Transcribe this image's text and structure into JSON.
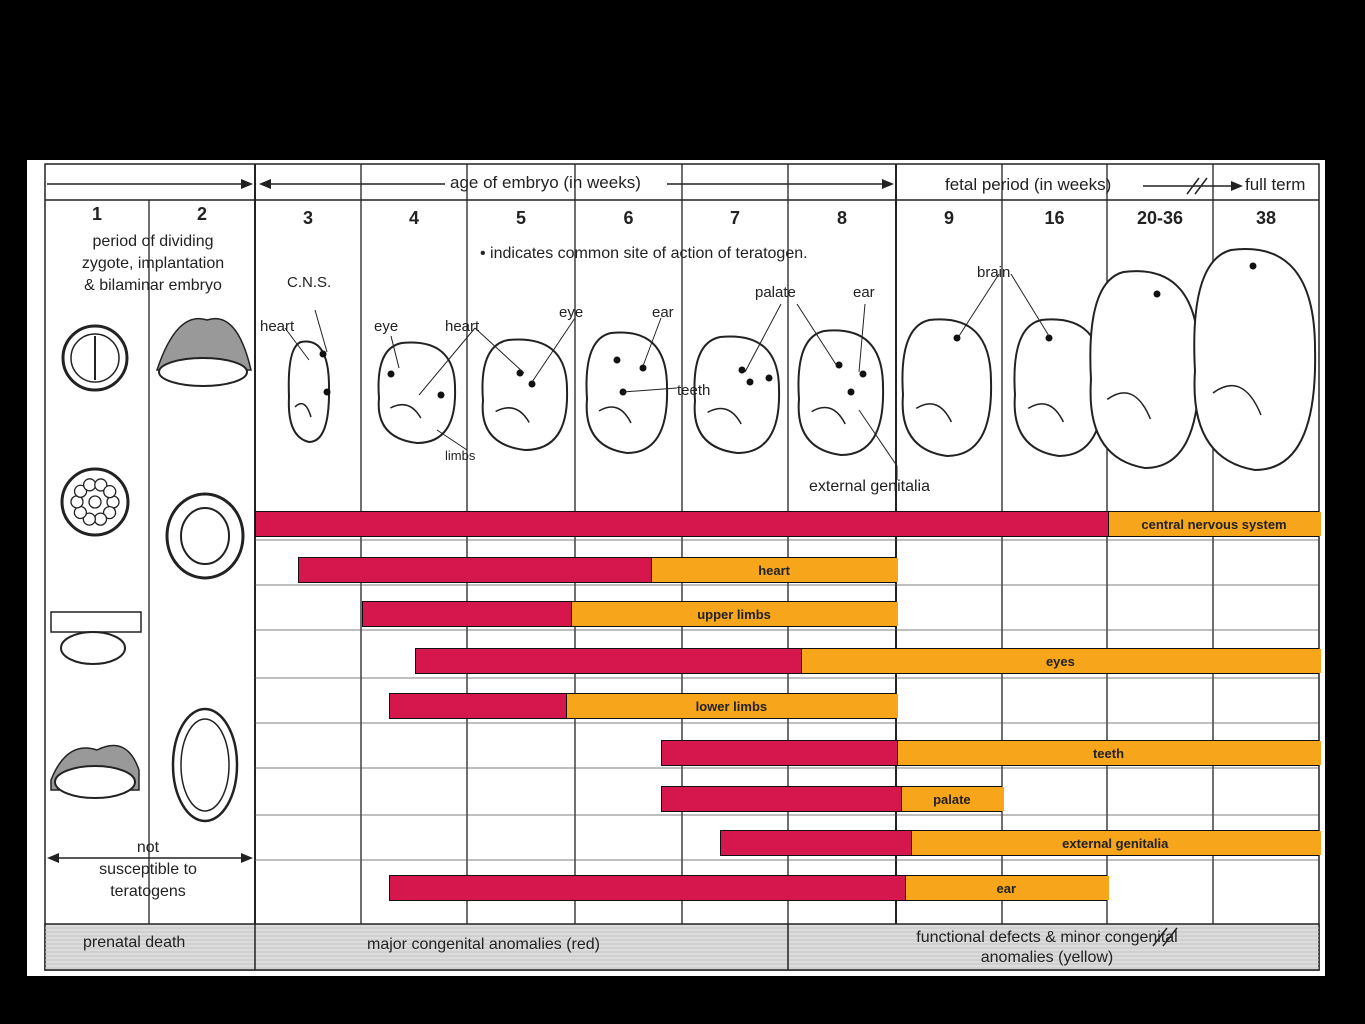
{
  "header": {
    "age_of_embryo": "age of embryo (in weeks)",
    "fetal_period": "fetal period (in weeks)",
    "full_term": "full term"
  },
  "weeks": [
    "1",
    "2",
    "3",
    "4",
    "5",
    "6",
    "7",
    "8",
    "9",
    "16",
    "20-36",
    "38"
  ],
  "notes": {
    "dividing_zygote": [
      "period of dividing",
      "zygote, implantation",
      "& bilaminar embryo"
    ],
    "indicates": "• indicates common site of action of teratogen.",
    "not_susceptible": [
      "not",
      "susceptible to",
      "teratogens"
    ]
  },
  "annotations": {
    "cns": "C.N.S.",
    "heart_3": "heart",
    "eye_4": "eye",
    "heart_4": "heart",
    "eye_5": "eye",
    "ear_6": "ear",
    "teeth": "teeth",
    "limbs": "limbs",
    "palate": "palate",
    "ear_8": "ear",
    "brain": "brain",
    "external_genitalia": "external genitalia"
  },
  "chart_data": {
    "type": "bar",
    "categories": [
      "central nervous system",
      "heart",
      "upper limbs",
      "eyes",
      "lower limbs",
      "teeth",
      "palate",
      "external genitalia",
      "ear"
    ],
    "series": [
      {
        "name": "major congenital anomalies (red)",
        "start": [
          3,
          3.4,
          4,
          4.5,
          4.25,
          6.8,
          6.8,
          7.35,
          4.25
        ],
        "end": [
          20,
          6.7,
          5.95,
          8.1,
          5.9,
          9,
          9.25,
          9.9,
          9.5
        ]
      },
      {
        "name": "functional defects & minor congenital anomalies (yellow)",
        "start": [
          20,
          6.7,
          5.95,
          8.1,
          5.9,
          9,
          9.25,
          9.9,
          9.5
        ],
        "end": [
          38,
          9,
          9,
          38,
          9,
          38,
          16,
          38,
          20
        ]
      }
    ],
    "periods": [
      "prenatal death",
      "major congenital anomalies (red)",
      "functional defects & minor congenital anomalies (yellow)"
    ]
  },
  "colors": {
    "major": "#d6174d",
    "minor": "#f7a51b",
    "ink": "#222222"
  }
}
